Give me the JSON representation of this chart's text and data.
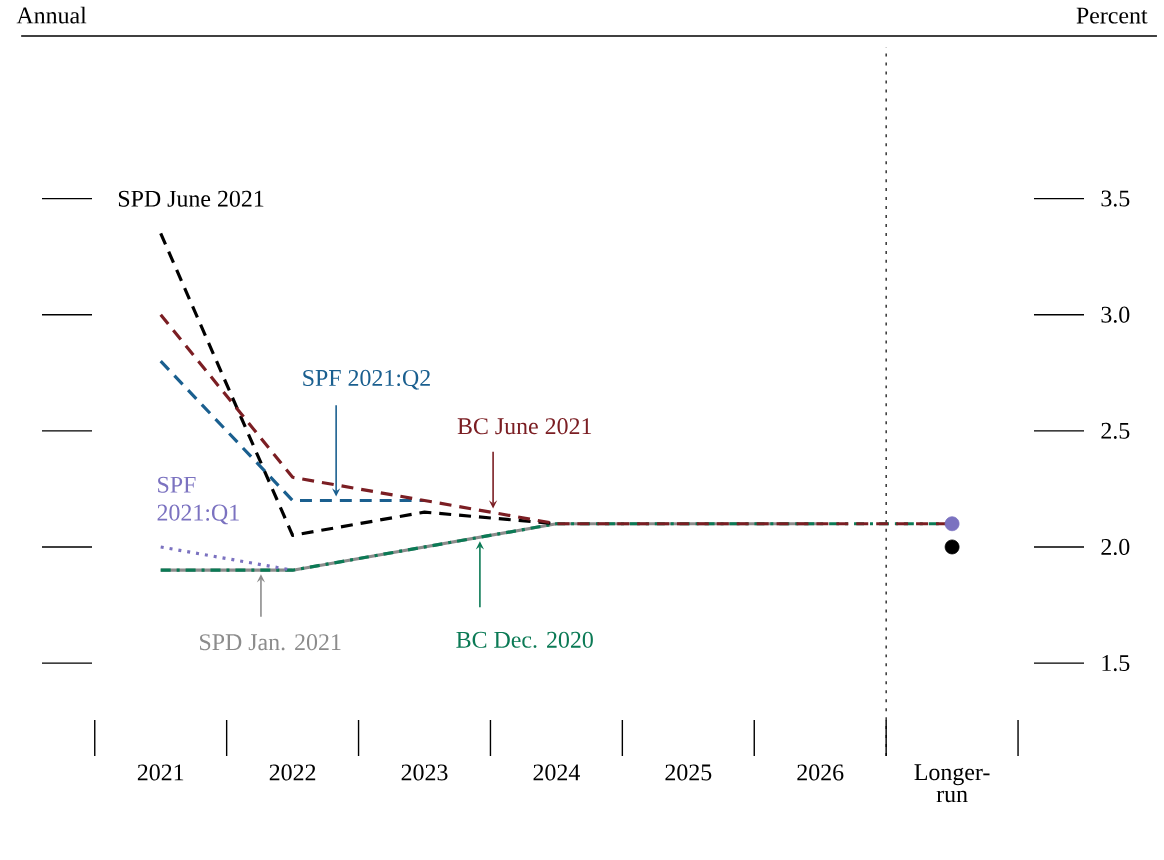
{
  "chart_data": {
    "type": "line",
    "categories": [
      "2021",
      "2022",
      "2023",
      "2024",
      "2025",
      "2026",
      "Longer-run"
    ],
    "ylabel": "Percent",
    "annotations": [
      "Annual"
    ],
    "ylim": [
      1.1,
      4.2
    ],
    "yticks": [
      {
        "value": 1.5,
        "label": "1.5"
      },
      {
        "value": 2.0,
        "label": "2.0"
      },
      {
        "value": 2.5,
        "label": "2.5"
      },
      {
        "value": 3.0,
        "label": "3.0"
      },
      {
        "value": 3.5,
        "label": "3.5"
      }
    ],
    "legend": "top left",
    "series": [
      {
        "name": "SPD Jan. 2021",
        "color": "#8c8c8c",
        "line_style": "solid",
        "values": [
          1.9,
          1.9,
          2.0,
          2.1,
          2.1,
          2.1,
          null
        ]
      },
      {
        "name": "BC Dec. 2020",
        "color": "#0b7a55",
        "line_style": "dashdot",
        "values": [
          1.9,
          1.9,
          2.0,
          2.1,
          2.1,
          2.1,
          2.1
        ]
      },
      {
        "name": "SPF 2021:Q1",
        "color": "#7b72c0",
        "line_style": "dotted",
        "values": [
          2.0,
          1.9,
          null,
          null,
          null,
          null,
          null
        ]
      },
      {
        "name": "SPD June 2021",
        "color": "#000000",
        "line_style": "dashed",
        "values": [
          3.35,
          2.05,
          2.15,
          2.1,
          null,
          null,
          null
        ]
      },
      {
        "name": "SPF 2021:Q2",
        "color": "#1a5f8f",
        "line_style": "dashed",
        "values": [
          2.8,
          2.2,
          2.2,
          null,
          null,
          null,
          null
        ]
      },
      {
        "name": "BC June 2021",
        "color": "#7b1e23",
        "line_style": "dashed",
        "values": [
          3.0,
          2.3,
          2.2,
          2.1,
          2.1,
          2.1,
          2.1
        ]
      },
      {
        "type": "scatter",
        "color": "#7b72c0",
        "values": [
          null,
          null,
          null,
          null,
          null,
          null,
          2.1
        ]
      },
      {
        "type": "scatter",
        "color": "#000000",
        "values": [
          null,
          null,
          null,
          null,
          null,
          null,
          2.0
        ]
      }
    ]
  }
}
